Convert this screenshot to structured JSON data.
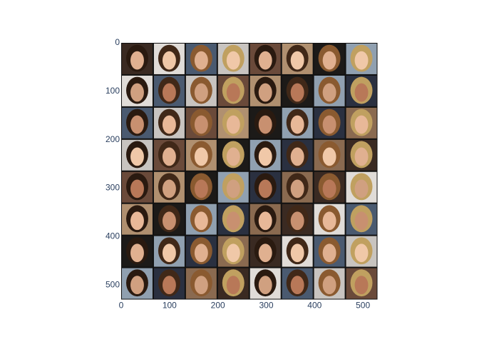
{
  "chart_data": {
    "type": "image",
    "xlim": [
      0,
      530
    ],
    "ylim": [
      530,
      0
    ],
    "xticks": [
      0,
      100,
      200,
      300,
      400,
      500
    ],
    "yticks": [
      0,
      100,
      200,
      300,
      400,
      500
    ]
  }
}
